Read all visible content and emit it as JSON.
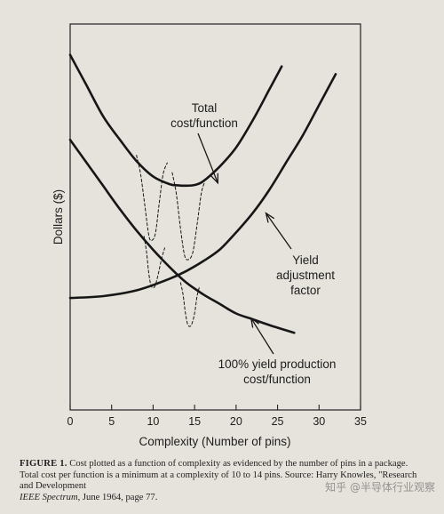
{
  "chart_data": {
    "type": "line",
    "title": "",
    "xlabel": "Complexity (Number of pins)",
    "ylabel": "Dollars ($)",
    "xlim": [
      0,
      35
    ],
    "ylim": [
      0,
      100
    ],
    "xticks": [
      "0",
      "5",
      "10",
      "15",
      "20",
      "25",
      "30",
      "35"
    ],
    "grid": false,
    "legend": "none",
    "series": [
      {
        "name": "Total cost/function",
        "style": "solid",
        "x": [
          0,
          2,
          4,
          6,
          8,
          10,
          12,
          13,
          14,
          15,
          16,
          18,
          20,
          22,
          24,
          25.5
        ],
        "y": [
          92,
          84,
          76,
          70,
          64.5,
          60.5,
          58.5,
          58.2,
          58.1,
          58.3,
          59.2,
          63,
          68,
          75,
          83,
          89
        ]
      },
      {
        "name": "Yield adjustment factor",
        "style": "solid",
        "x": [
          0,
          4,
          8,
          12,
          14,
          16,
          18,
          20,
          22,
          24,
          26,
          28,
          30,
          32
        ],
        "y": [
          29,
          29.5,
          31,
          34,
          36,
          38.5,
          41.5,
          46,
          51,
          57,
          64,
          71,
          79,
          87
        ]
      },
      {
        "name": "100% yield production cost/function",
        "style": "solid",
        "x": [
          0,
          2,
          4,
          6,
          8,
          10,
          12,
          14,
          16,
          18,
          20,
          22,
          24,
          27
        ],
        "y": [
          70,
          64,
          58,
          52,
          46.5,
          41.5,
          37,
          33,
          30,
          27.5,
          25,
          23.5,
          22,
          20
        ]
      },
      {
        "name": "",
        "style": "dashed",
        "x": [
          8,
          8.5,
          9,
          9.5,
          9.9,
          10.3,
          10.7,
          11.2,
          11.7
        ],
        "y": [
          66,
          61,
          53,
          45,
          44,
          46,
          53,
          61,
          64
        ]
      },
      {
        "name": "",
        "style": "dashed",
        "x": [
          12.3,
          12.8,
          13.3,
          13.8,
          14.3,
          14.8,
          15.3,
          15.8,
          16.2
        ],
        "y": [
          61.5,
          56,
          47,
          40,
          39,
          41,
          48,
          56,
          59
        ]
      },
      {
        "name": "",
        "style": "dashed",
        "x": [
          8.9,
          9.2,
          9.5,
          9.8,
          10.2,
          10.6,
          11,
          11.4
        ],
        "y": [
          45,
          41,
          35,
          32,
          32,
          35,
          39,
          42
        ]
      },
      {
        "name": "",
        "style": "dashed",
        "x": [
          13.3,
          13.6,
          13.9,
          14.2,
          14.6,
          15,
          15.3,
          15.6
        ],
        "y": [
          33,
          30,
          25,
          22,
          22,
          25,
          29.5,
          32
        ]
      }
    ],
    "annotations": [
      {
        "lines": [
          "Total",
          "cost/function"
        ],
        "arrow_to": [
          17.8,
          58.8
        ]
      },
      {
        "lines": [
          "Yield",
          "adjustment",
          "factor"
        ],
        "arrow_to": [
          23.6,
          51
        ]
      },
      {
        "lines": [
          "100% yield production",
          "cost/function"
        ],
        "arrow_to": [
          21.8,
          23.8
        ]
      }
    ]
  },
  "caption": {
    "label": "FIGURE 1.",
    "text": " Cost plotted as a function of complexity as evidenced by the number of pins in a package. Total cost per function is a minimum at a complexity of 10 to 14 pins. Source: Harry Knowles, \"Research and Development",
    "source_title": "IEEE Spectrum",
    "source_rest": ", June 1964, page 77."
  },
  "watermark": "知乎 @半导体行业观察"
}
